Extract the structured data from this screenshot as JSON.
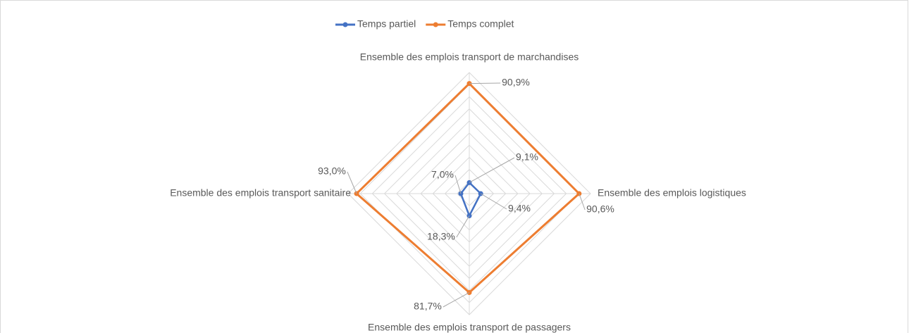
{
  "chart_data": {
    "type": "radar",
    "categories": [
      "Ensemble des emplois transport de marchandises",
      "Ensemble des emplois logistiques",
      "Ensemble des emplois transport de passagers",
      "Ensemble des emplois transport sanitaire"
    ],
    "series": [
      {
        "name": "Temps partiel",
        "color": "#4472c4",
        "values": [
          9.1,
          9.4,
          18.3,
          7.0
        ],
        "value_labels": [
          "9,1%",
          "9,4%",
          "18,3%",
          "7,0%"
        ]
      },
      {
        "name": "Temps complet",
        "color": "#ed7d31",
        "values": [
          90.9,
          90.6,
          81.7,
          93.0
        ],
        "value_labels": [
          "90,9%",
          "90,6%",
          "81,7%",
          "93,0%"
        ]
      }
    ],
    "ylim": [
      0,
      100
    ],
    "yticks": [
      0,
      10,
      20,
      30,
      40,
      50,
      60,
      70,
      80,
      90,
      100
    ],
    "grid": true,
    "legend": "top"
  }
}
